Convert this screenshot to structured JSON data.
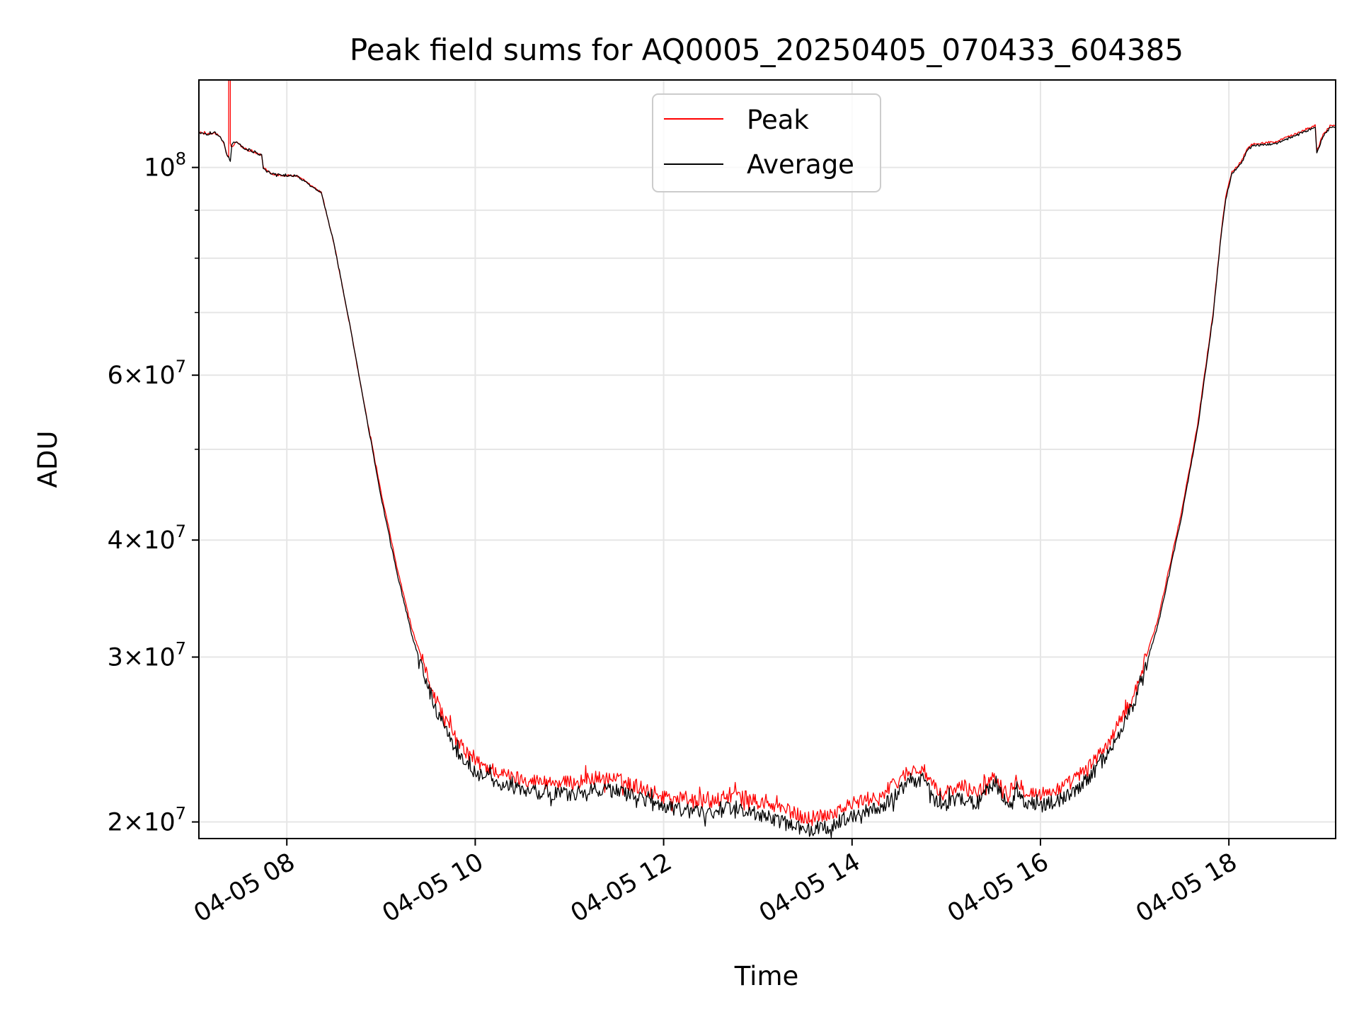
{
  "chart_data": {
    "type": "line",
    "title": "Peak field sums for AQ0005_20250405_070433_604385",
    "xlabel": "Time",
    "ylabel": "ADU",
    "x_range": [
      "2025-04-05 07:04",
      "2025-04-05 19:08"
    ],
    "y_scale": "log",
    "ylim": [
      19200000,
      124000000
    ],
    "grid": true,
    "legend_position": "top-center",
    "x_ticks": [
      {
        "value": "2025-04-05 08:00",
        "label": "04-05 08"
      },
      {
        "value": "2025-04-05 10:00",
        "label": "04-05 10"
      },
      {
        "value": "2025-04-05 12:00",
        "label": "04-05 12"
      },
      {
        "value": "2025-04-05 14:00",
        "label": "04-05 14"
      },
      {
        "value": "2025-04-05 16:00",
        "label": "04-05 16"
      },
      {
        "value": "2025-04-05 18:00",
        "label": "04-05 18"
      }
    ],
    "y_ticks": [
      {
        "value": 20000000,
        "mant": "2",
        "exp": "7"
      },
      {
        "value": 30000000,
        "mant": "3",
        "exp": "7"
      },
      {
        "value": 40000000,
        "mant": "4",
        "exp": "7"
      },
      {
        "value": 60000000,
        "mant": "6",
        "exp": "7"
      },
      {
        "value": 100000000,
        "mant": "",
        "exp": "8"
      }
    ],
    "y_minor_ticks": [
      50000000,
      70000000,
      80000000,
      90000000
    ],
    "series": [
      {
        "name": "Peak",
        "color": "#ff0000",
        "noise": 0.018,
        "points": [
          [
            "2025-04-05 07:04",
            109000000
          ],
          [
            "2025-04-05 07:10",
            108500000
          ],
          [
            "2025-04-05 07:14",
            109000000
          ],
          [
            "2025-04-05 07:18",
            107500000
          ],
          [
            "2025-04-05 07:20",
            106000000
          ],
          [
            "2025-04-05 07:22",
            103000000
          ],
          [
            "2025-04-05 07:23",
            102500000
          ],
          [
            "2025-04-05 07:23",
            124000000
          ],
          [
            "2025-04-05 07:24",
            124000000
          ],
          [
            "2025-04-05 07:24",
            106000000
          ],
          [
            "2025-04-05 07:25",
            105000000
          ],
          [
            "2025-04-05 07:28",
            106500000
          ],
          [
            "2025-04-05 07:32",
            105000000
          ],
          [
            "2025-04-05 07:37",
            104000000
          ],
          [
            "2025-04-05 07:44",
            103000000
          ],
          [
            "2025-04-05 07:45",
            100000000
          ],
          [
            "2025-04-05 07:50",
            98500000
          ],
          [
            "2025-04-05 07:58",
            98000000
          ],
          [
            "2025-04-05 08:06",
            98000000
          ],
          [
            "2025-04-05 08:16",
            95500000
          ],
          [
            "2025-04-05 08:22",
            94000000
          ],
          [
            "2025-04-05 08:30",
            83000000
          ],
          [
            "2025-04-05 08:40",
            68000000
          ],
          [
            "2025-04-05 08:50",
            55000000
          ],
          [
            "2025-04-05 09:00",
            45000000
          ],
          [
            "2025-04-05 09:10",
            37500000
          ],
          [
            "2025-04-05 09:20",
            32000000
          ],
          [
            "2025-04-05 09:30",
            28500000
          ],
          [
            "2025-04-05 09:40",
            25800000
          ],
          [
            "2025-04-05 09:50",
            24200000
          ],
          [
            "2025-04-05 10:00",
            23200000
          ],
          [
            "2025-04-05 10:20",
            22400000
          ],
          [
            "2025-04-05 10:40",
            22100000
          ],
          [
            "2025-04-05 11:00",
            22000000
          ],
          [
            "2025-04-05 11:15",
            22300000
          ],
          [
            "2025-04-05 11:30",
            22200000
          ],
          [
            "2025-04-05 11:45",
            21800000
          ],
          [
            "2025-04-05 12:00",
            21300000
          ],
          [
            "2025-04-05 12:30",
            21000000
          ],
          [
            "2025-04-05 12:45",
            21400000
          ],
          [
            "2025-04-05 13:00",
            21000000
          ],
          [
            "2025-04-05 13:15",
            20700000
          ],
          [
            "2025-04-05 13:30",
            20200000
          ],
          [
            "2025-04-05 13:45",
            20400000
          ],
          [
            "2025-04-05 14:00",
            20900000
          ],
          [
            "2025-04-05 14:20",
            21400000
          ],
          [
            "2025-04-05 14:35",
            22600000
          ],
          [
            "2025-04-05 14:45",
            22800000
          ],
          [
            "2025-04-05 14:55",
            21400000
          ],
          [
            "2025-04-05 15:10",
            21800000
          ],
          [
            "2025-04-05 15:20",
            21500000
          ],
          [
            "2025-04-05 15:30",
            22400000
          ],
          [
            "2025-04-05 15:40",
            21500000
          ],
          [
            "2025-04-05 15:45",
            22300000
          ],
          [
            "2025-04-05 15:50",
            21600000
          ],
          [
            "2025-04-05 16:00",
            21400000
          ],
          [
            "2025-04-05 16:15",
            21800000
          ],
          [
            "2025-04-05 16:30",
            22800000
          ],
          [
            "2025-04-05 16:45",
            24500000
          ],
          [
            "2025-04-05 17:00",
            27500000
          ],
          [
            "2025-04-05 17:15",
            33000000
          ],
          [
            "2025-04-05 17:30",
            43000000
          ],
          [
            "2025-04-05 17:40",
            53000000
          ],
          [
            "2025-04-05 17:50",
            70000000
          ],
          [
            "2025-04-05 17:55",
            85000000
          ],
          [
            "2025-04-05 17:58",
            93000000
          ],
          [
            "2025-04-05 18:00",
            96000000
          ],
          [
            "2025-04-05 18:02",
            99000000
          ],
          [
            "2025-04-05 18:08",
            101500000
          ],
          [
            "2025-04-05 18:12",
            105000000
          ],
          [
            "2025-04-05 18:15",
            106000000
          ],
          [
            "2025-04-05 18:30",
            106500000
          ],
          [
            "2025-04-05 18:45",
            109000000
          ],
          [
            "2025-04-05 18:55",
            111000000
          ],
          [
            "2025-04-05 18:56",
            104000000
          ],
          [
            "2025-04-05 19:00",
            108500000
          ],
          [
            "2025-04-05 19:05",
            111000000
          ],
          [
            "2025-04-05 19:08",
            111000000
          ]
        ]
      },
      {
        "name": "Average",
        "color": "#000000",
        "noise": 0.018,
        "points": [
          [
            "2025-04-05 07:04",
            109000000
          ],
          [
            "2025-04-05 07:10",
            108500000
          ],
          [
            "2025-04-05 07:14",
            109000000
          ],
          [
            "2025-04-05 07:18",
            107500000
          ],
          [
            "2025-04-05 07:20",
            106000000
          ],
          [
            "2025-04-05 07:22",
            103000000
          ],
          [
            "2025-04-05 07:23",
            102500000
          ],
          [
            "2025-04-05 07:24",
            101500000
          ],
          [
            "2025-04-05 07:25",
            106000000
          ],
          [
            "2025-04-05 07:28",
            106500000
          ],
          [
            "2025-04-05 07:32",
            105000000
          ],
          [
            "2025-04-05 07:37",
            104000000
          ],
          [
            "2025-04-05 07:44",
            103000000
          ],
          [
            "2025-04-05 07:45",
            100000000
          ],
          [
            "2025-04-05 07:50",
            98500000
          ],
          [
            "2025-04-05 07:58",
            98000000
          ],
          [
            "2025-04-05 08:06",
            98000000
          ],
          [
            "2025-04-05 08:16",
            95500000
          ],
          [
            "2025-04-05 08:22",
            94000000
          ],
          [
            "2025-04-05 08:30",
            83000000
          ],
          [
            "2025-04-05 08:40",
            68000000
          ],
          [
            "2025-04-05 08:50",
            55000000
          ],
          [
            "2025-04-05 09:00",
            44500000
          ],
          [
            "2025-04-05 09:10",
            37000000
          ],
          [
            "2025-04-05 09:20",
            31500000
          ],
          [
            "2025-04-05 09:30",
            27800000
          ],
          [
            "2025-04-05 09:40",
            25200000
          ],
          [
            "2025-04-05 09:50",
            23600000
          ],
          [
            "2025-04-05 10:00",
            22600000
          ],
          [
            "2025-04-05 10:20",
            21800000
          ],
          [
            "2025-04-05 10:40",
            21500000
          ],
          [
            "2025-04-05 11:00",
            21400000
          ],
          [
            "2025-04-05 11:15",
            21700000
          ],
          [
            "2025-04-05 11:30",
            21600000
          ],
          [
            "2025-04-05 11:45",
            21200000
          ],
          [
            "2025-04-05 12:00",
            20700000
          ],
          [
            "2025-04-05 12:30",
            20400000
          ],
          [
            "2025-04-05 12:45",
            20800000
          ],
          [
            "2025-04-05 13:00",
            20400000
          ],
          [
            "2025-04-05 13:15",
            20000000
          ],
          [
            "2025-04-05 13:30",
            19600000
          ],
          [
            "2025-04-05 13:45",
            19800000
          ],
          [
            "2025-04-05 14:00",
            20300000
          ],
          [
            "2025-04-05 14:20",
            20800000
          ],
          [
            "2025-04-05 14:35",
            22000000
          ],
          [
            "2025-04-05 14:45",
            22200000
          ],
          [
            "2025-04-05 14:55",
            20800000
          ],
          [
            "2025-04-05 15:10",
            21200000
          ],
          [
            "2025-04-05 15:20",
            20900000
          ],
          [
            "2025-04-05 15:30",
            21800000
          ],
          [
            "2025-04-05 15:40",
            20900000
          ],
          [
            "2025-04-05 15:45",
            21700000
          ],
          [
            "2025-04-05 15:50",
            21000000
          ],
          [
            "2025-04-05 16:00",
            20800000
          ],
          [
            "2025-04-05 16:15",
            21200000
          ],
          [
            "2025-04-05 16:30",
            22200000
          ],
          [
            "2025-04-05 16:45",
            23900000
          ],
          [
            "2025-04-05 17:00",
            26900000
          ],
          [
            "2025-04-05 17:15",
            32500000
          ],
          [
            "2025-04-05 17:30",
            42500000
          ],
          [
            "2025-04-05 17:40",
            52500000
          ],
          [
            "2025-04-05 17:50",
            69500000
          ],
          [
            "2025-04-05 17:55",
            84500000
          ],
          [
            "2025-04-05 17:58",
            92500000
          ],
          [
            "2025-04-05 18:00",
            95500000
          ],
          [
            "2025-04-05 18:02",
            98500000
          ],
          [
            "2025-04-05 18:08",
            101000000
          ],
          [
            "2025-04-05 18:12",
            104500000
          ],
          [
            "2025-04-05 18:15",
            105500000
          ],
          [
            "2025-04-05 18:30",
            106000000
          ],
          [
            "2025-04-05 18:45",
            108500000
          ],
          [
            "2025-04-05 18:55",
            110500000
          ],
          [
            "2025-04-05 18:56",
            103500000
          ],
          [
            "2025-04-05 19:00",
            108000000
          ],
          [
            "2025-04-05 19:05",
            110500000
          ],
          [
            "2025-04-05 19:08",
            110500000
          ]
        ]
      }
    ]
  }
}
